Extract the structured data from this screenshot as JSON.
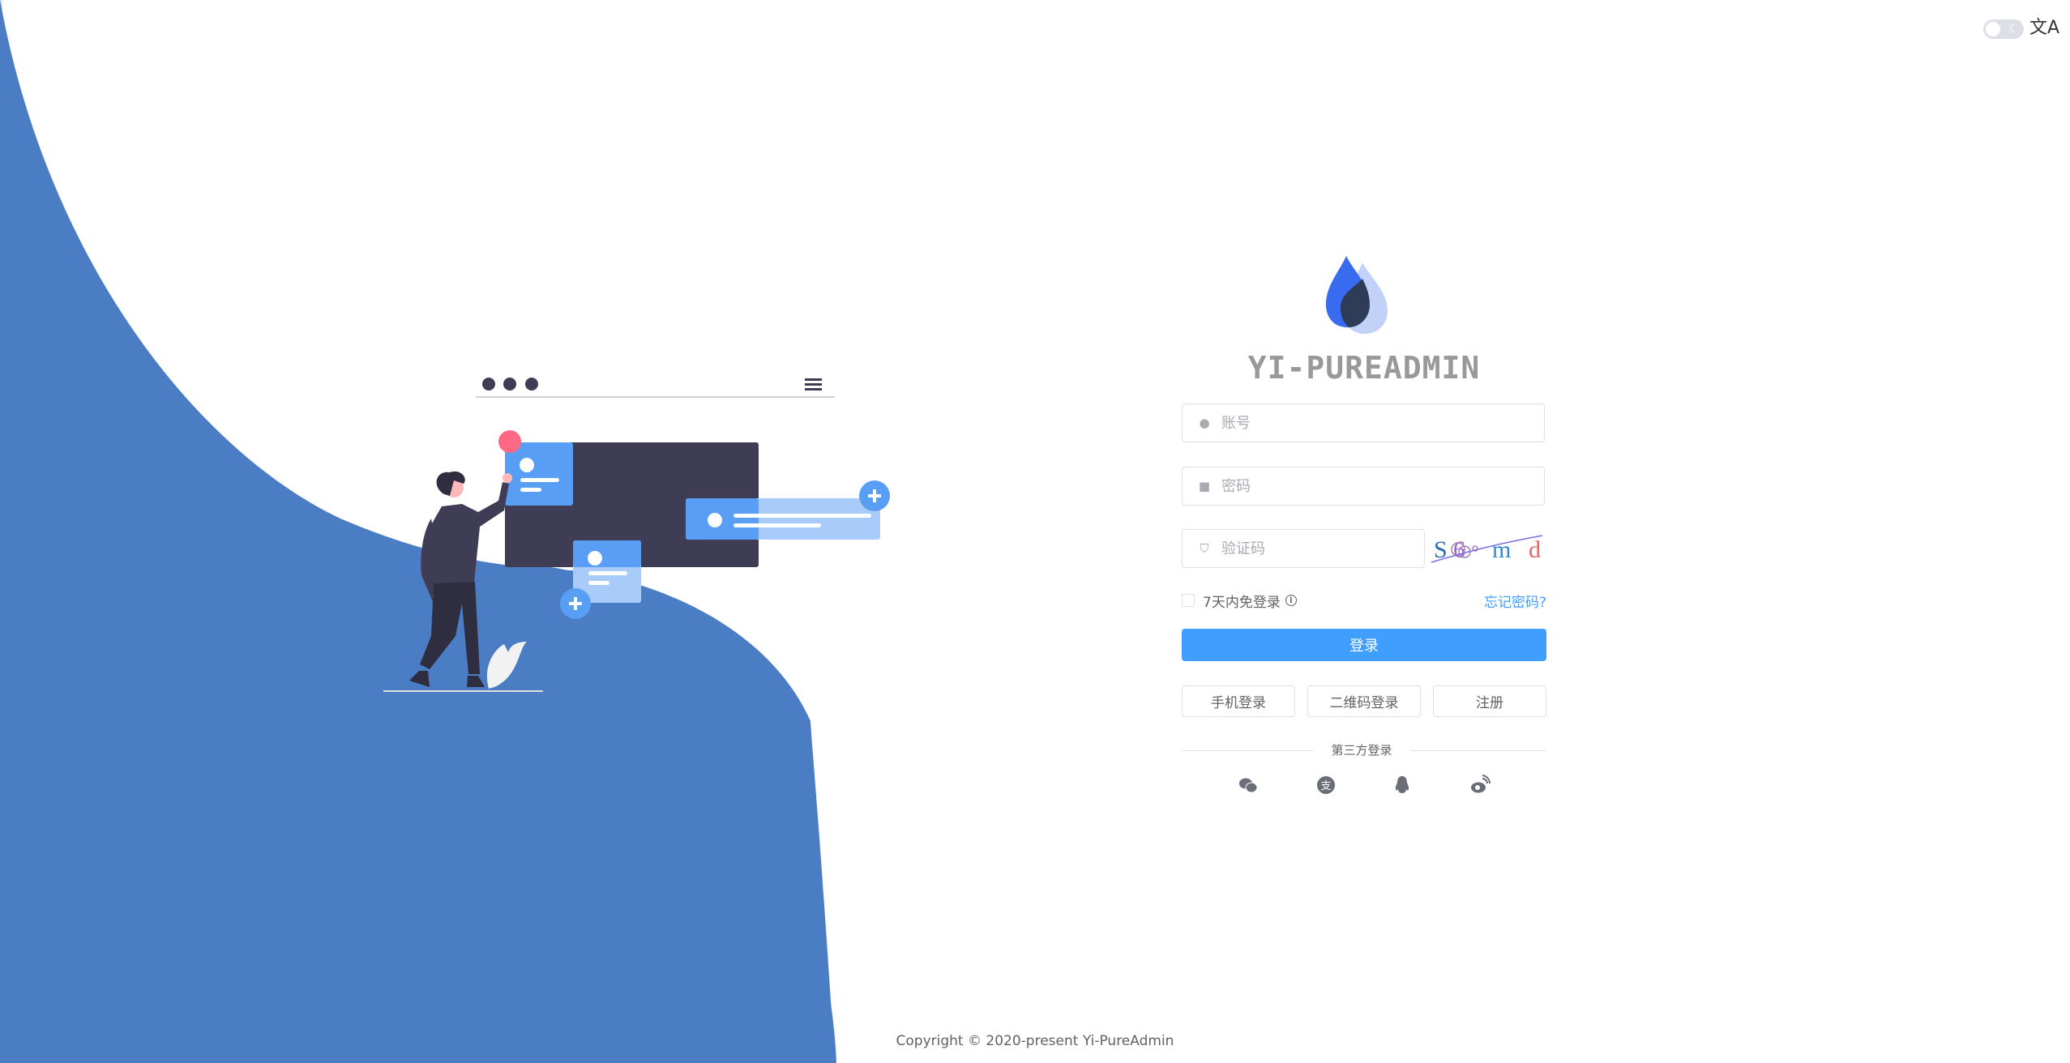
{
  "colors": {
    "background_shape": "#4b7dc4",
    "primary": "#409eff",
    "illustration_dark": "#3f3d56",
    "card_blue": "#589ef5",
    "card_light": "#a8cbfa",
    "accent_pink": "#ff6884"
  },
  "header": {
    "theme_toggle": {
      "state": "light",
      "icons": [
        "sun-icon",
        "moon-icon"
      ]
    },
    "language_icon": "translate-icon",
    "language_glyph": "文A"
  },
  "brand": {
    "title": "YI-PUREADMIN",
    "logo": "water-drop-logo"
  },
  "form": {
    "username": {
      "placeholder": "账号",
      "value": "",
      "icon": "user-icon"
    },
    "password": {
      "placeholder": "密码",
      "value": "",
      "icon": "lock-icon"
    },
    "captcha": {
      "placeholder": "验证码",
      "value": "",
      "icon": "shield-icon",
      "image_chars": [
        "S",
        "6",
        "m",
        "d"
      ]
    },
    "remember_label": "7天内免登录",
    "remember_checked": false,
    "forgot_password": "忘记密码?",
    "login_button": "登录",
    "alt_buttons": [
      "手机登录",
      "二维码登录",
      "注册"
    ],
    "third_party_label": "第三方登录",
    "third_party_icons": [
      "wechat-icon",
      "alipay-icon",
      "qq-icon",
      "weibo-icon"
    ]
  },
  "footer": {
    "copyright": "Copyright © 2020-present Yi-PureAdmin"
  }
}
